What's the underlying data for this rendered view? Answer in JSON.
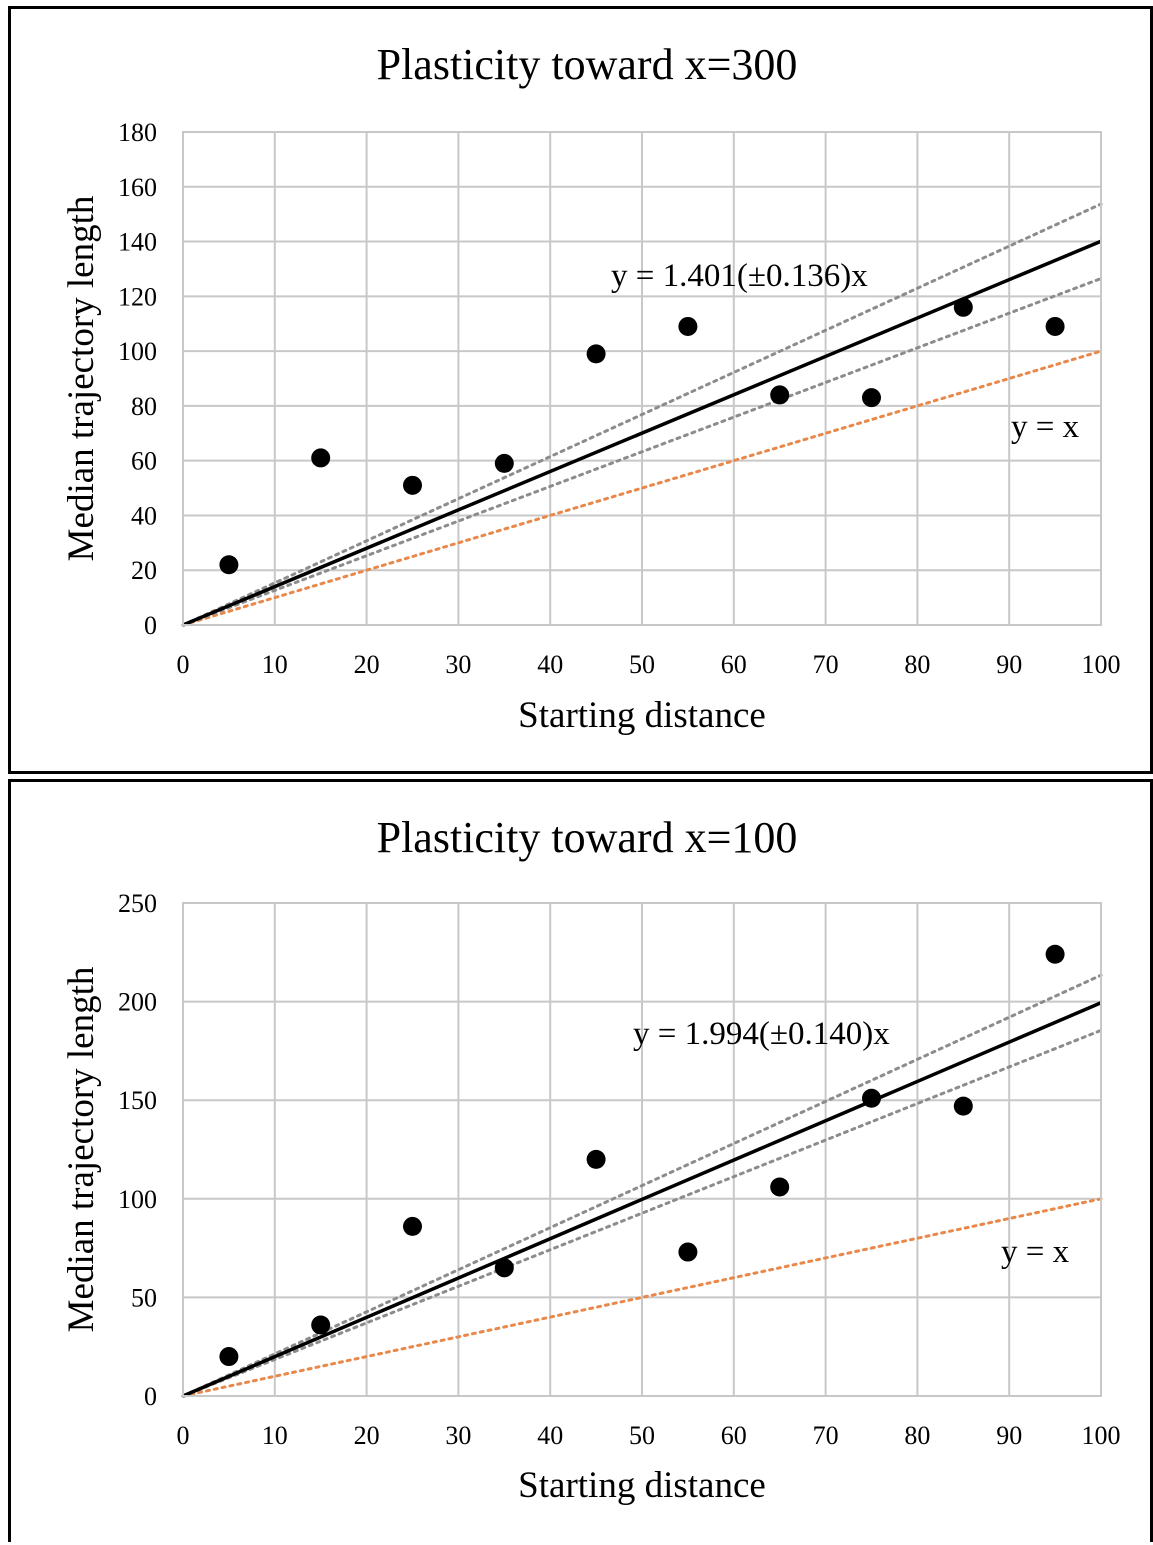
{
  "chart_data": [
    {
      "type": "scatter",
      "title": "Plasticity  toward  x=300",
      "xlabel": "Starting distance",
      "ylabel": "Median trajectory length",
      "xlim": [
        0,
        100
      ],
      "ylim": [
        0,
        180
      ],
      "xticks": [
        0,
        10,
        20,
        30,
        40,
        50,
        60,
        70,
        80,
        90,
        100
      ],
      "yticks": [
        0,
        20,
        40,
        60,
        80,
        100,
        120,
        140,
        160,
        180
      ],
      "grid": true,
      "points": {
        "x": [
          5,
          15,
          25,
          35,
          45,
          55,
          65,
          75,
          85,
          95
        ],
        "y": [
          22,
          61,
          51,
          59,
          99,
          109,
          84,
          83,
          116,
          109
        ]
      },
      "fit": {
        "slope": 1.401,
        "upper_slope": 1.537,
        "lower_slope": 1.265,
        "label": "y = 1.401(±0.136)x"
      },
      "identity": {
        "slope": 1,
        "label": "y = x"
      },
      "colors": {
        "points": "#000000",
        "fit": "#000000",
        "ci": "#8c8c8c",
        "identity": "#e8884a",
        "grid": "#c8c8c8"
      }
    },
    {
      "type": "scatter",
      "title": "Plasticity  toward  x=100",
      "xlabel": "Starting distance",
      "ylabel": "Median trajectory length",
      "xlim": [
        0,
        100
      ],
      "ylim": [
        0,
        250
      ],
      "xticks": [
        0,
        10,
        20,
        30,
        40,
        50,
        60,
        70,
        80,
        90,
        100
      ],
      "yticks": [
        0,
        50,
        100,
        150,
        200,
        250
      ],
      "grid": true,
      "points": {
        "x": [
          5,
          15,
          25,
          35,
          45,
          55,
          65,
          75,
          85,
          95
        ],
        "y": [
          20,
          36,
          86,
          65,
          120,
          73,
          106,
          151,
          147,
          224
        ]
      },
      "fit": {
        "slope": 1.994,
        "upper_slope": 2.134,
        "lower_slope": 1.854,
        "label": "y = 1.994(±0.140)x"
      },
      "identity": {
        "slope": 1,
        "label": "y = x"
      },
      "colors": {
        "points": "#000000",
        "fit": "#000000",
        "ci": "#8c8c8c",
        "identity": "#e8884a",
        "grid": "#c8c8c8"
      }
    }
  ]
}
